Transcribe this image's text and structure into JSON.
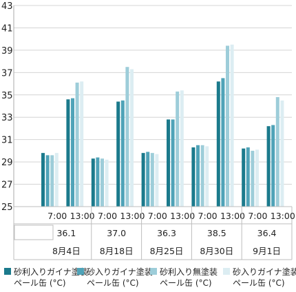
{
  "chart_data": {
    "type": "bar",
    "ylim": [
      25,
      43
    ],
    "yticks": [
      25,
      27,
      29,
      31,
      33,
      35,
      37,
      39,
      41,
      43
    ],
    "grid": true,
    "legend_position": "bottom",
    "groups": [
      {
        "date": "8月4日",
        "max_temp": "36.1",
        "times": [
          "7:00",
          "13:00"
        ]
      },
      {
        "date": "8月18日",
        "max_temp": "37.0",
        "times": [
          "7:00",
          "13:00"
        ]
      },
      {
        "date": "8月25日",
        "max_temp": "36.3",
        "times": [
          "7:00",
          "13:00"
        ]
      },
      {
        "date": "8月30日",
        "max_temp": "38.5",
        "times": [
          "7:00",
          "13:00"
        ]
      },
      {
        "date": "9月1日",
        "max_temp": "36.4",
        "times": [
          "7:00",
          "13:00"
        ]
      }
    ],
    "series": [
      {
        "name": "砂利入りガイナ塗装 ペール缶 (°C)",
        "label_lines": [
          "砂利入りガイナ塗装",
          "ペール缶 (°C)"
        ],
        "color": "#1b7a8c",
        "values": [
          29.8,
          34.6,
          29.3,
          34.4,
          29.8,
          32.8,
          30.3,
          36.2,
          30.2,
          32.2
        ]
      },
      {
        "name": "砂入りガイナ塗装 ペール缶 (°C)",
        "label_lines": [
          "砂入りガイナ塗装",
          "ペール缶 (°C)"
        ],
        "color": "#4fa3b8",
        "values": [
          29.6,
          34.7,
          29.4,
          34.5,
          29.9,
          32.8,
          30.5,
          36.5,
          30.3,
          32.3
        ]
      },
      {
        "name": "砂利入り無塗装 ペール缶 (°C)",
        "label_lines": [
          "砂利入り無塗装",
          "ペール缶 (°C)"
        ],
        "color": "#9dcdd9",
        "values": [
          29.6,
          36.1,
          29.3,
          37.5,
          29.8,
          35.3,
          30.5,
          39.4,
          30.0,
          34.8
        ]
      },
      {
        "name": "砂入りガイナ塗装 ペール缶 (°C)",
        "label_lines": [
          "砂入りガイナ塗装",
          "ペール缶 (°C)"
        ],
        "color": "#dcedf2",
        "values": [
          29.8,
          36.2,
          29.2,
          37.3,
          29.7,
          35.4,
          30.4,
          39.5,
          30.1,
          34.5
        ]
      }
    ]
  }
}
